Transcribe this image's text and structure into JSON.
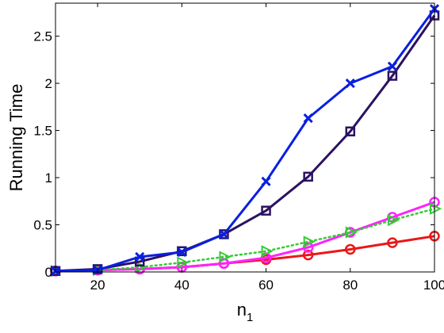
{
  "chart_data": {
    "type": "line",
    "title": "",
    "xlabel": "n",
    "xlabel_sub": "1",
    "ylabel": "Running Time",
    "xlim": [
      10,
      100
    ],
    "ylim": [
      0,
      2.85
    ],
    "xticks": [
      20,
      40,
      60,
      80,
      100
    ],
    "yticks": [
      0,
      0.5,
      1,
      1.5,
      2,
      2.5
    ],
    "ytick_labels": [
      "0",
      "0.5",
      "1",
      "1.5",
      "2",
      "2.5"
    ],
    "grid": false,
    "legend": "none",
    "x": [
      10,
      20,
      30,
      40,
      50,
      60,
      70,
      80,
      90,
      100
    ],
    "series": [
      {
        "color": "#0a1fe0",
        "marker": "x",
        "line": "solid",
        "values": [
          0.01,
          0.02,
          0.16,
          0.21,
          0.4,
          0.96,
          1.63,
          2.0,
          2.18,
          2.79
        ]
      },
      {
        "color": "#2b1260",
        "marker": "square",
        "line": "solid",
        "values": [
          0.01,
          0.03,
          0.11,
          0.22,
          0.4,
          0.65,
          1.01,
          1.49,
          2.08,
          2.72
        ]
      },
      {
        "color": "#33cc33",
        "marker": "triangle-right",
        "line": "dotted",
        "values": [
          0.01,
          0.02,
          0.05,
          0.1,
          0.16,
          0.22,
          0.32,
          0.42,
          0.55,
          0.67
        ]
      },
      {
        "color": "#ff22ff",
        "marker": "circle",
        "line": "solid",
        "values": [
          0.01,
          0.02,
          0.03,
          0.05,
          0.09,
          0.15,
          0.26,
          0.42,
          0.58,
          0.74
        ]
      },
      {
        "color": "#e81818",
        "marker": "circle",
        "line": "solid",
        "values": [
          0.01,
          0.02,
          0.03,
          0.05,
          0.09,
          0.13,
          0.18,
          0.24,
          0.31,
          0.38
        ]
      }
    ]
  }
}
